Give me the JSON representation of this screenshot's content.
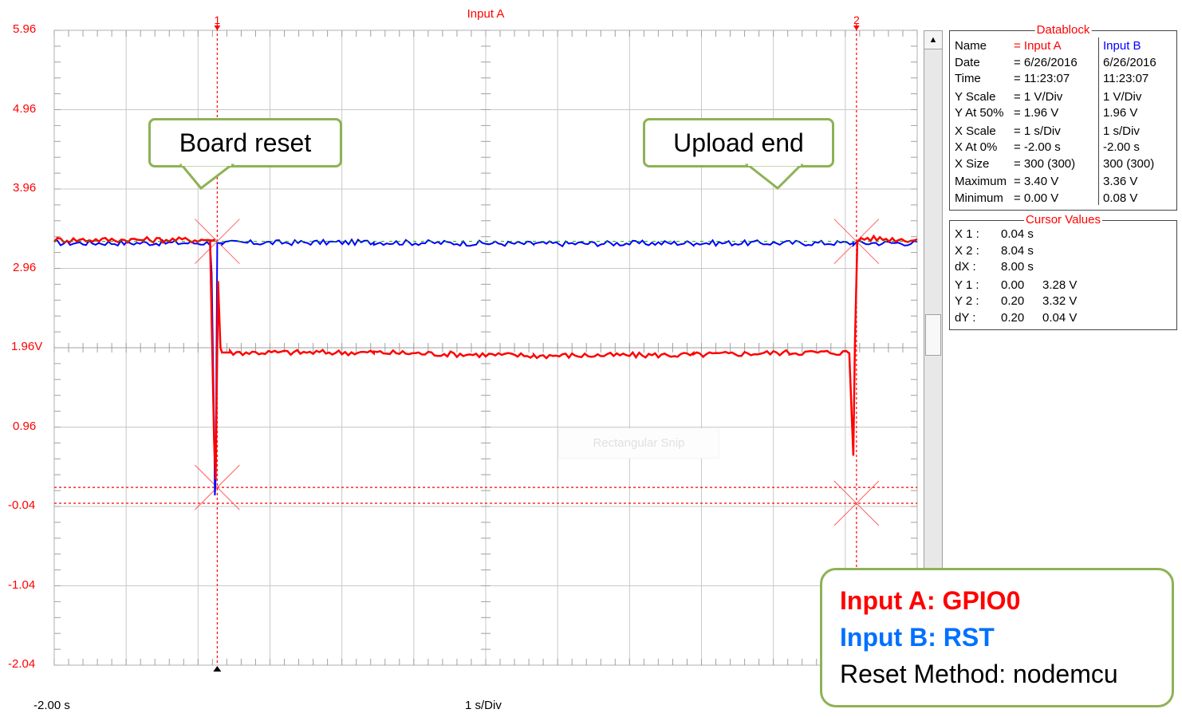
{
  "chart_data": {
    "type": "line",
    "title": "Input A",
    "ylabel_units": "V",
    "y_ticks": [
      "5.96",
      "4.96",
      "3.96",
      "2.96",
      "1.96V",
      "0.96",
      "-0.04",
      "-1.04",
      "-2.04"
    ],
    "ylim": [
      -2.04,
      5.96
    ],
    "xlim": [
      -2.0,
      8.8
    ],
    "x_start_label": "-2.00 s",
    "x_scale_label": "1 s/Div",
    "grid": true,
    "series": [
      {
        "name": "Input A",
        "color": "#ff0000",
        "x": [
          -2.0,
          0.0,
          -0.05,
          0.0,
          0.02,
          0.05,
          0.08,
          0.1,
          0.2,
          2.0,
          4.0,
          6.0,
          7.2,
          7.95,
          8.0,
          8.02,
          8.05,
          8.1,
          8.8
        ],
        "y": [
          3.32,
          3.32,
          3.3,
          0.8,
          0.3,
          2.8,
          1.96,
          1.9,
          1.9,
          1.9,
          1.86,
          1.87,
          1.9,
          1.9,
          0.6,
          2.0,
          3.3,
          3.34,
          3.32
        ]
      },
      {
        "name": "Input B",
        "color": "#0000ff",
        "x": [
          -2.0,
          -0.05,
          -0.03,
          0.0,
          0.01,
          0.02,
          0.04,
          0.1,
          2.0,
          4.0,
          6.0,
          8.0,
          8.8
        ],
        "y": [
          3.28,
          3.28,
          2.9,
          1.0,
          0.1,
          0.3,
          3.28,
          3.28,
          3.29,
          3.27,
          3.28,
          3.28,
          3.28
        ]
      }
    ],
    "cursors": [
      {
        "label": "1",
        "x": 0.04
      },
      {
        "label": "2",
        "x": 8.04
      }
    ],
    "cursor_y_levels": [
      0.2,
      0.0
    ],
    "midline_y": 1.96
  },
  "datablock": {
    "title": "Datablock",
    "rows": [
      {
        "label": "Name",
        "a": "= Input A",
        "b": "Input B"
      },
      {
        "label": "Date",
        "a": "= 6/26/2016",
        "b": "6/26/2016"
      },
      {
        "label": "Time",
        "a": "= 11:23:07",
        "b": "11:23:07"
      },
      {
        "label": "Y Scale",
        "a": "= 1     V/Div",
        "b": "1     V/Div"
      },
      {
        "label": "Y At 50%",
        "a": "= 1.96 V",
        "b": "1.96 V"
      },
      {
        "label": "X Scale",
        "a": "= 1     s/Div",
        "b": "1     s/Div"
      },
      {
        "label": "X At 0%",
        "a": "= -2.00 s",
        "b": "-2.00 s"
      },
      {
        "label": "X Size",
        "a": "= 300 (300)",
        "b": "300 (300)"
      },
      {
        "label": "Maximum",
        "a": "= 3.40 V",
        "b": "3.36 V"
      },
      {
        "label": "Minimum",
        "a": "= 0.00 V",
        "b": "0.08 V"
      }
    ]
  },
  "cursor_values": {
    "title": "Cursor Values",
    "rows": [
      {
        "label": "X 1 :",
        "v1": "0.04 s",
        "v2": ""
      },
      {
        "label": "X 2 :",
        "v1": "8.04 s",
        "v2": ""
      },
      {
        "label": "dX :",
        "v1": "8.00 s",
        "v2": ""
      },
      {
        "label": "Y 1 :",
        "v1": "0.00",
        "v2": "3.28 V"
      },
      {
        "label": "Y 2 :",
        "v1": "0.20",
        "v2": "3.32 V"
      },
      {
        "label": "dY :",
        "v1": "0.20",
        "v2": "0.04 V"
      }
    ]
  },
  "callouts": {
    "board_reset": "Board reset",
    "upload_end": "Upload end"
  },
  "legend": {
    "input_a": "Input A: GPIO0",
    "input_b": "Input B: RST",
    "reset_method": "Reset Method: nodemcu",
    "color_a": "#ff0000",
    "color_b": "#0070ff"
  },
  "overlay": {
    "snip_label": "Rectangular Snip"
  }
}
